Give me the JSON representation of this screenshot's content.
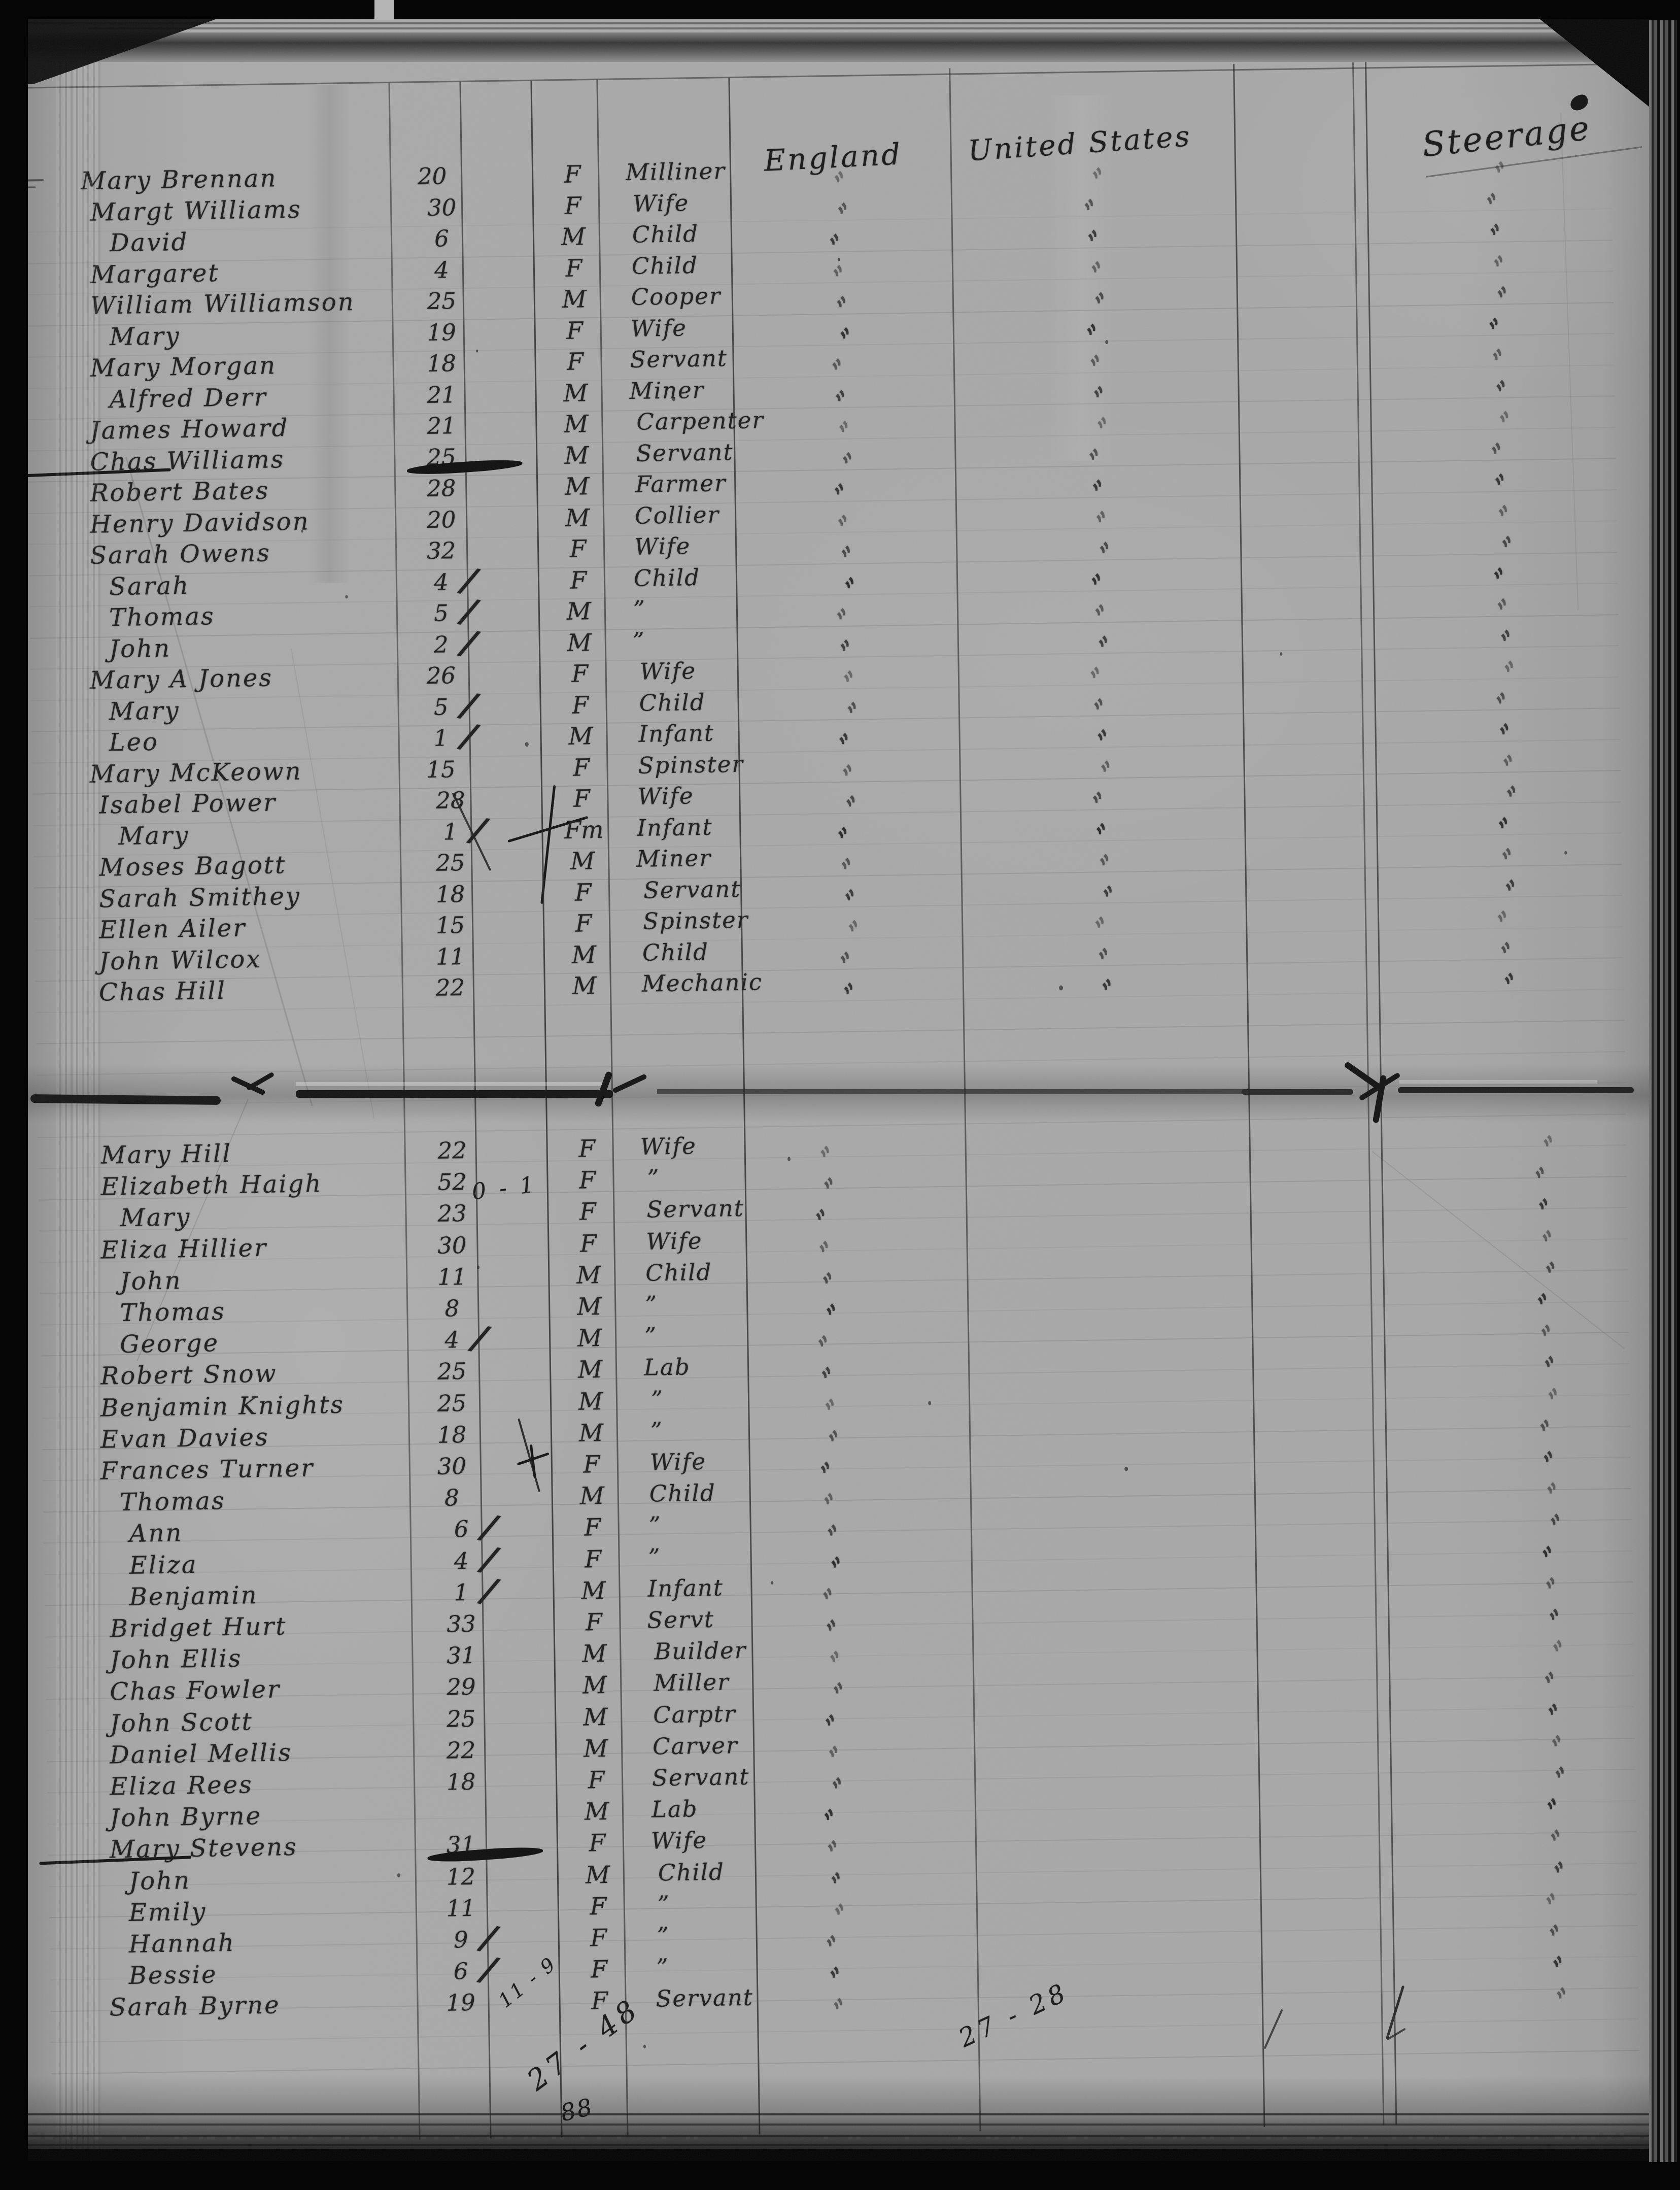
{
  "page": {
    "headers": {
      "origin": "England",
      "destination": "United States",
      "travel_class": "Steerage"
    },
    "ditto_glyph": "”",
    "annotations": {
      "fare_note": "0 - 1",
      "tally_small": "11 - 9",
      "tally_left": "27 - 48",
      "page_total": "88",
      "tally_mid": "27 - 28"
    },
    "sections": [
      {
        "id": "upper",
        "ticks": [
          "england",
          "united_states",
          "steerage"
        ],
        "rows": [
          {
            "name": "Mary Brennan",
            "age": "20",
            "sex": "F",
            "occupation": "Milliner"
          },
          {
            "name": "Margt Williams",
            "age": "30",
            "sex": "F",
            "occupation": "Wife"
          },
          {
            "name": "David",
            "name_ditto": true,
            "ind": 1,
            "age": "6",
            "sex": "M",
            "occupation": "Child"
          },
          {
            "name": "Margaret",
            "name_ditto": true,
            "age": "4",
            "sex": "F",
            "occupation": "Child"
          },
          {
            "name": "William Williamson",
            "age": "25",
            "sex": "M",
            "occupation": "Cooper"
          },
          {
            "name": "Mary",
            "name_ditto": true,
            "ind": 1,
            "age": "19",
            "sex": "F",
            "occupation": "Wife"
          },
          {
            "name": "Mary Morgan",
            "age": "18",
            "sex": "F",
            "occupation": "Servant"
          },
          {
            "name": "Alfred Derr",
            "ind": 1,
            "age": "21",
            "sex": "M",
            "occupation": "Miner"
          },
          {
            "name": "James Howard",
            "age": "21",
            "sex": "M",
            "occupation": "Carpenter"
          },
          {
            "name": "Chas Williams",
            "age": "25",
            "sex": "M",
            "occupation": "Servant",
            "struck": true
          },
          {
            "name": "Robert Bates",
            "age": "28",
            "sex": "M",
            "occupation": "Farmer"
          },
          {
            "name": "Henry Davidson",
            "age": "20",
            "sex": "M",
            "occupation": "Collier"
          },
          {
            "name": "Sarah Owens",
            "age": "32",
            "sex": "F",
            "occupation": "Wife"
          },
          {
            "name": "Sarah",
            "name_ditto": true,
            "ind": 1,
            "age": "4",
            "age_slash": true,
            "sex": "F",
            "occupation": "Child"
          },
          {
            "name": "Thomas",
            "name_ditto": true,
            "ind": 1,
            "age": "5",
            "age_slash": true,
            "sex": "M",
            "occupation": "”"
          },
          {
            "name": "John",
            "name_ditto": true,
            "ind": 1,
            "age": "2",
            "age_slash": true,
            "sex": "M",
            "occupation": "”"
          },
          {
            "name": "Mary A Jones",
            "age": "26",
            "sex": "F",
            "occupation": "Wife"
          },
          {
            "name": "Mary",
            "name_ditto": true,
            "ind": 1,
            "age": "5",
            "age_slash": true,
            "sex": "F",
            "occupation": "Child"
          },
          {
            "name": "Leo",
            "name_ditto": true,
            "ind": 1,
            "age": "1",
            "age_slash": true,
            "sex": "M",
            "occupation": "Infant"
          },
          {
            "name": "Mary McKeown",
            "age": "15",
            "sex": "F",
            "occupation": "Spinster"
          },
          {
            "name": "Isabel Power",
            "age": "28",
            "sex": "F",
            "occupation": "Wife"
          },
          {
            "name": "Mary",
            "name_ditto": true,
            "ind": 1,
            "age": "1",
            "age_slash": true,
            "sex": "Fm",
            "occupation": "Infant"
          },
          {
            "name": "Moses Bagott",
            "age": "25",
            "sex": "M",
            "occupation": "Miner"
          },
          {
            "name": "Sarah Smithey",
            "age": "18",
            "sex": "F",
            "occupation": "Servant"
          },
          {
            "name": "Ellen Ailer",
            "age": "15",
            "sex": "F",
            "occupation": "Spinster"
          },
          {
            "name": "John Wilcox",
            "age": "11",
            "sex": "M",
            "occupation": "Child"
          },
          {
            "name": "Chas Hill",
            "age": "22",
            "sex": "M",
            "occupation": "Mechanic"
          }
        ]
      },
      {
        "id": "lower",
        "ticks": [
          "england",
          "steerage"
        ],
        "rows": [
          {
            "name": "Mary Hill",
            "age": "22",
            "sex": "F",
            "occupation": "Wife"
          },
          {
            "name": "Elizabeth Haigh",
            "age": "52",
            "sex": "F",
            "occupation": "”"
          },
          {
            "name": "Mary",
            "name_ditto": true,
            "ind": 1,
            "age": "23",
            "sex": "F",
            "occupation": "Servant"
          },
          {
            "name": "Eliza Hillier",
            "age": "30",
            "sex": "F",
            "occupation": "Wife"
          },
          {
            "name": "John",
            "name_ditto": true,
            "ind": 1,
            "age": "11",
            "sex": "M",
            "occupation": "Child"
          },
          {
            "name": "Thomas",
            "name_ditto": true,
            "ind": 1,
            "age": "8",
            "sex": "M",
            "occupation": "”"
          },
          {
            "name": "George",
            "name_ditto": true,
            "ind": 1,
            "age": "4",
            "age_slash": true,
            "sex": "M",
            "occupation": "”"
          },
          {
            "name": "Robert Snow",
            "age": "25",
            "sex": "M",
            "occupation": "Lab"
          },
          {
            "name": "Benjamin Knights",
            "age": "25",
            "sex": "M",
            "occupation": "”"
          },
          {
            "name": "Evan Davies",
            "age": "18",
            "sex": "M",
            "occupation": "”"
          },
          {
            "name": "Frances Turner",
            "age": "30",
            "sex": "F",
            "occupation": "Wife",
            "cross": true
          },
          {
            "name": "Thomas",
            "name_ditto": true,
            "ind": 1,
            "age": "8",
            "sex": "M",
            "occupation": "Child"
          },
          {
            "name": "Ann",
            "name_ditto": true,
            "ind": 1,
            "age": "6",
            "age_slash": true,
            "sex": "F",
            "occupation": "”"
          },
          {
            "name": "Eliza",
            "name_ditto": true,
            "ind": 1,
            "age": "4",
            "age_slash": true,
            "sex": "F",
            "occupation": "”"
          },
          {
            "name": "Benjamin",
            "name_ditto": true,
            "ind": 1,
            "age": "1",
            "age_slash": true,
            "sex": "M",
            "occupation": "Infant"
          },
          {
            "name": "Bridget Hurt",
            "age": "33",
            "sex": "F",
            "occupation": "Servt"
          },
          {
            "name": "John Ellis",
            "age": "31",
            "sex": "M",
            "occupation": "Builder"
          },
          {
            "name": "Chas Fowler",
            "age": "29",
            "sex": "M",
            "occupation": "Miller"
          },
          {
            "name": "John Scott",
            "age": "25",
            "sex": "M",
            "occupation": "Carptr"
          },
          {
            "name": "Daniel Mellis",
            "age": "22",
            "sex": "M",
            "occupation": "Carver"
          },
          {
            "name": "Eliza Rees",
            "age": "18",
            "sex": "F",
            "occupation": "Servant"
          },
          {
            "name": "John Byrne",
            "age": "",
            "sex": "M",
            "occupation": "Lab"
          },
          {
            "name": "Mary Stevens",
            "age": "31",
            "sex": "F",
            "occupation": "Wife",
            "struck": true
          },
          {
            "name": "John",
            "name_ditto": true,
            "ind": 1,
            "age": "12",
            "sex": "M",
            "occupation": "Child"
          },
          {
            "name": "Emily",
            "name_ditto": true,
            "ind": 1,
            "age": "11",
            "sex": "F",
            "occupation": "”"
          },
          {
            "name": "Hannah",
            "name_ditto": true,
            "ind": 1,
            "age": "9",
            "age_slash": true,
            "sex": "F",
            "occupation": "”"
          },
          {
            "name": "Bessie",
            "name_ditto": true,
            "ind": 1,
            "age": "6",
            "age_slash": true,
            "sex": "F",
            "occupation": "”"
          },
          {
            "name": "Sarah Byrne",
            "age": "19",
            "sex": "F",
            "occupation": "Servant"
          }
        ]
      }
    ]
  }
}
